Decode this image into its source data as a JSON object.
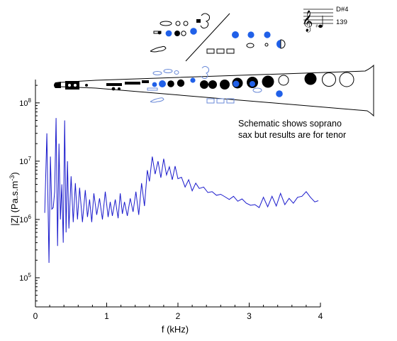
{
  "note": {
    "line1": "Schematic shows soprano",
    "line2": "sax but results are for tenor"
  },
  "fingering_key": {
    "note_name": "D#4",
    "fingering_number": "139",
    "clef_icon": "treble-clef-icon"
  },
  "colors": {
    "curve": "#1a1acc",
    "closed_key": "#2060e8",
    "open_key_outline": "#6a8ad8",
    "axis": "#000000"
  },
  "chart_data": {
    "type": "line",
    "xlabel": "f (kHz)",
    "ylabel": "|Z| (Pa.s.m",
    "ylabel_exponent": "-3",
    "ylabel_close": ")",
    "xlim": [
      0,
      4
    ],
    "ylim_log10": [
      4.5,
      8.4
    ],
    "yscale": "log",
    "x_ticks": [
      {
        "value": 0,
        "label": "0"
      },
      {
        "value": 1,
        "label": "1"
      },
      {
        "value": 2,
        "label": "2"
      },
      {
        "value": 3,
        "label": "3"
      },
      {
        "value": 4,
        "label": "4"
      }
    ],
    "y_ticks": [
      {
        "exp": 5,
        "base": "10",
        "sup": "5"
      },
      {
        "exp": 6,
        "base": "10",
        "sup": "6"
      },
      {
        "exp": 7,
        "base": "10",
        "sup": "7"
      },
      {
        "exp": 8,
        "base": "10",
        "sup": "8"
      }
    ],
    "series": [
      {
        "x": [
          0.13,
          0.16,
          0.19,
          0.21,
          0.23,
          0.25,
          0.27,
          0.29,
          0.31,
          0.33,
          0.35,
          0.37,
          0.39,
          0.41,
          0.43,
          0.45,
          0.47,
          0.5,
          0.53,
          0.56,
          0.59,
          0.62,
          0.66,
          0.7,
          0.73,
          0.76,
          0.79,
          0.82,
          0.86,
          0.9,
          0.94,
          0.98,
          1.02,
          1.05,
          1.08,
          1.12,
          1.16,
          1.19,
          1.22,
          1.25,
          1.29,
          1.33,
          1.37,
          1.41,
          1.45,
          1.49,
          1.53,
          1.57,
          1.6,
          1.64,
          1.68,
          1.72,
          1.76,
          1.8,
          1.84,
          1.88,
          1.92,
          1.96,
          2.0,
          2.05,
          2.1,
          2.15,
          2.2,
          2.25,
          2.3,
          2.36,
          2.42,
          2.48,
          2.54,
          2.6,
          2.66,
          2.72,
          2.78,
          2.84,
          2.9,
          2.96,
          3.02,
          3.08,
          3.14,
          3.2,
          3.26,
          3.32,
          3.38,
          3.44,
          3.5,
          3.56,
          3.62,
          3.68,
          3.74,
          3.8,
          3.86,
          3.92,
          3.97
        ],
        "y": [
          1300000,
          30000000,
          180000,
          12000000,
          1500000,
          1600000,
          3000000,
          55000000,
          350000,
          20000000,
          1000000,
          4000000,
          400000,
          50000000,
          600000,
          10000000,
          700000,
          5500000,
          900000,
          4200000,
          1000000,
          3500000,
          900000,
          3200000,
          1100000,
          2200000,
          900000,
          2800000,
          1200000,
          2300000,
          1000000,
          3000000,
          1100000,
          2000000,
          1150000,
          2200000,
          1050000,
          2800000,
          1250000,
          2000000,
          1150000,
          2300000,
          1350000,
          3000000,
          1200000,
          4200000,
          1700000,
          7000000,
          4500000,
          12000000,
          6000000,
          10000000,
          5200000,
          11000000,
          5800000,
          8000000,
          4800000,
          8200000,
          5000000,
          5300000,
          3600000,
          4800000,
          3100000,
          4200000,
          3400000,
          3600000,
          2900000,
          3000000,
          2600000,
          2700000,
          2450000,
          2200000,
          2500000,
          2050000,
          2250000,
          1900000,
          1750000,
          1800000,
          1600000,
          2400000,
          1650000,
          2500000,
          1700000,
          2800000,
          1800000,
          2300000,
          1900000,
          2400000,
          2500000,
          3000000,
          2400000,
          2000000,
          2100000
        ]
      }
    ]
  }
}
